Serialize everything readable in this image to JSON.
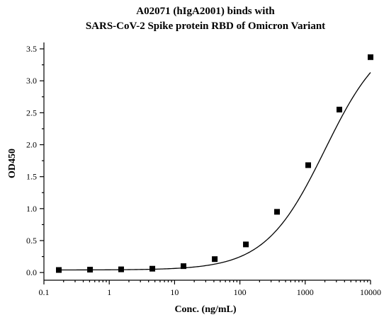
{
  "chart_data": {
    "type": "scatter",
    "title": [
      "A02071 (hIgA2001) binds with",
      "SARS-CoV-2 Spike protein RBD of Omicron Variant"
    ],
    "xlabel": "Conc. (ng/mL)",
    "ylabel": "OD450",
    "x_scale": "log",
    "xlim": [
      0.1,
      10000
    ],
    "ylim": [
      -0.12,
      3.6
    ],
    "x_ticks": [
      0.1,
      1,
      10,
      100,
      1000,
      10000
    ],
    "x_tick_labels": [
      "0.1",
      "1",
      "10",
      "100",
      "1000",
      "10000"
    ],
    "y_ticks": [
      0.0,
      0.5,
      1.0,
      1.5,
      2.0,
      2.5,
      3.0,
      3.5
    ],
    "y_tick_labels": [
      "0.0",
      "0.5",
      "1.0",
      "1.5",
      "2.0",
      "2.5",
      "3.0",
      "3.5"
    ],
    "grid": false,
    "legend": "none",
    "marker": "square",
    "fit": "4PL",
    "series": [
      {
        "x": [
          0.169,
          0.508,
          1.52,
          4.57,
          13.7,
          41.2,
          123.5,
          370.4,
          1111,
          3333,
          10000
        ],
        "y": [
          0.04,
          0.045,
          0.05,
          0.06,
          0.1,
          0.21,
          0.44,
          0.95,
          1.68,
          2.55,
          3.37
        ]
      }
    ],
    "fit_params": {
      "bottom": 0.04,
      "top": 3.8,
      "ec50": 2000,
      "hill": 0.95
    },
    "color": "#000000"
  }
}
